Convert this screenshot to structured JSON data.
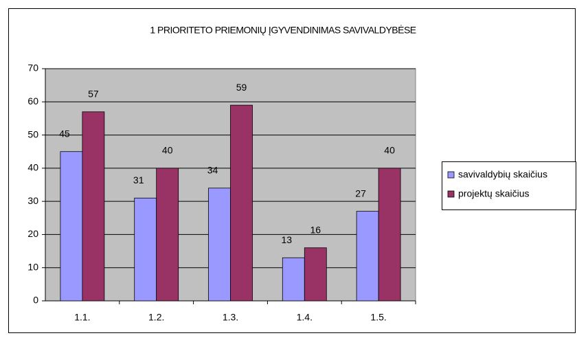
{
  "chart_data": {
    "type": "bar",
    "title": "1 PRIORITETO PRIEMONIŲ ĮGYVENDINIMAS SAVIVALDYBĖSE",
    "categories": [
      "1.1.",
      "1.2.",
      "1.3.",
      "1.4.",
      "1.5."
    ],
    "series": [
      {
        "name": "savivaldybių skaičius",
        "color": "#9999ff",
        "values": [
          45,
          31,
          34,
          13,
          27
        ]
      },
      {
        "name": "projektų skaičius",
        "color": "#993366",
        "values": [
          57,
          40,
          59,
          16,
          40
        ]
      }
    ],
    "ylim": [
      0,
      70
    ],
    "yticks": [
      0,
      10,
      20,
      30,
      40,
      50,
      60,
      70
    ],
    "grid": true,
    "legend": "right"
  }
}
